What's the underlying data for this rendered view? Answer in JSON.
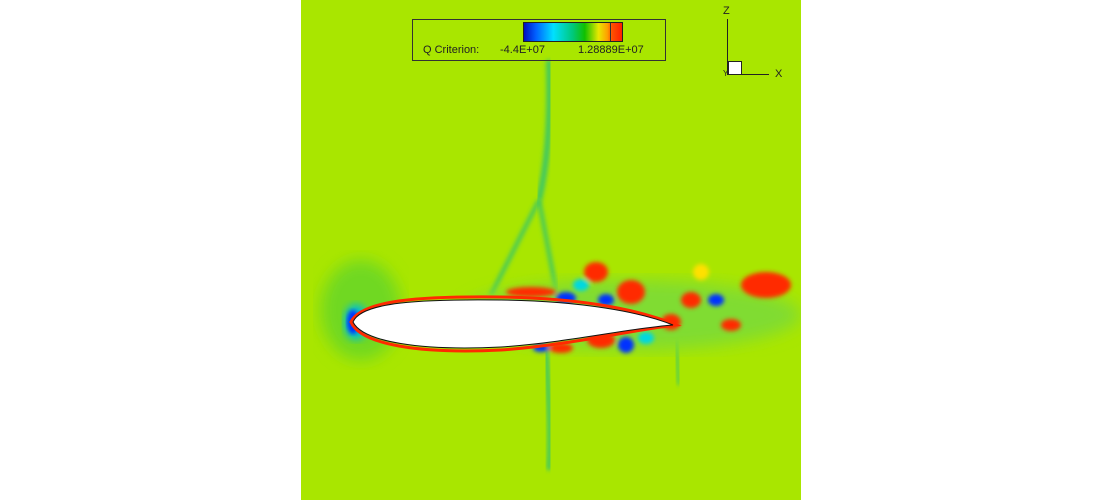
{
  "legend": {
    "variable_label": "Q Criterion:",
    "min_label": "-4.4E+07",
    "max_label": "1.28889E+07",
    "colormap": [
      "#0010c0",
      "#0060ff",
      "#00e0ff",
      "#00c878",
      "#10c000",
      "#e8e800",
      "#ffa000",
      "#ff2000"
    ]
  },
  "axes_triad": {
    "vertical": "Z",
    "horizontal": "X",
    "depth": "Y"
  },
  "colors": {
    "background_field": "#a9e600",
    "airfoil": "#ffffff",
    "positive_vortex": "#ff2a00",
    "negative_vortex": "#0030ff"
  }
}
